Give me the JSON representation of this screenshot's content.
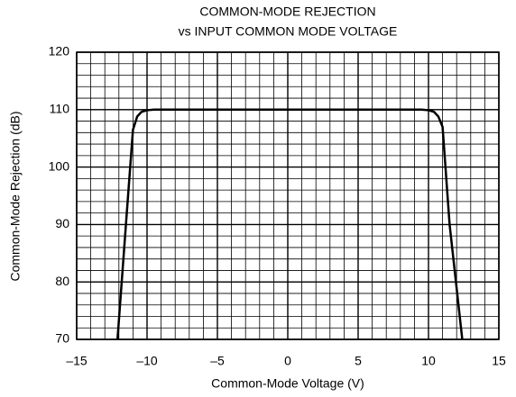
{
  "chart_data": {
    "type": "line",
    "title": "COMMON-MODE REJECTION",
    "subtitle": "vs INPUT COMMON MODE VOLTAGE",
    "xlabel": "Common-Mode Voltage (V)",
    "ylabel": "Common-Mode Rejection (dB)",
    "x": [
      -12.1,
      -11.5,
      -11,
      -10.7,
      -10.4,
      -10,
      -9.5,
      0,
      9.5,
      10,
      10.4,
      10.7,
      11,
      11.5,
      12.4
    ],
    "values": [
      70,
      90,
      106.5,
      108.8,
      109.6,
      109.9,
      110,
      110,
      110,
      109.9,
      109.6,
      108.8,
      107,
      90,
      70
    ],
    "color": "#000000",
    "xlim": [
      -15,
      15
    ],
    "ylim": [
      70,
      120
    ],
    "xticks": [
      {
        "value": -15,
        "label": "–15"
      },
      {
        "value": -10,
        "label": "–10"
      },
      {
        "value": -5,
        "label": "–5"
      },
      0,
      5,
      10,
      15
    ],
    "yticks": [
      70,
      80,
      90,
      100,
      110,
      120
    ],
    "grid": true,
    "minor_grid": {
      "x": 1,
      "y": 2
    }
  }
}
